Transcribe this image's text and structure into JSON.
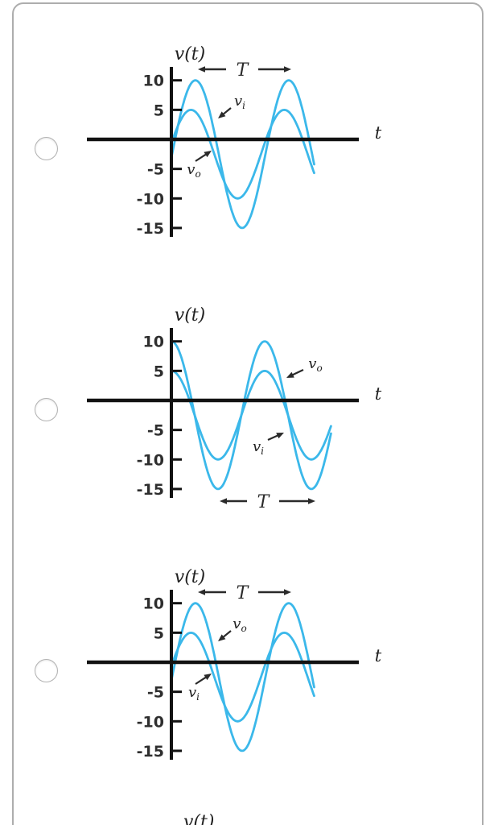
{
  "colors": {
    "curve": "#3bb8ea",
    "axis": "#121212",
    "arrow": "#2a2a2a",
    "text": "#222222",
    "tick_text": "#2e2e2e",
    "radio_border": "#b2b2b2",
    "card_border": "#adadad",
    "background": "#ffffff"
  },
  "question": {
    "options": [
      {
        "name": "option-1",
        "selected": false,
        "chart_index": 0
      },
      {
        "name": "option-2",
        "selected": false,
        "chart_index": 1
      },
      {
        "name": "option-3",
        "selected": false,
        "chart_index": 2
      }
    ]
  },
  "chart_data": [
    {
      "type": "line",
      "title": "",
      "ylabel": "v(t)",
      "xlabel": "t",
      "period_label": "T",
      "period_marker": "top",
      "yticks": [
        10,
        5,
        -5,
        -10,
        -15
      ],
      "ylim": [
        -16,
        12
      ],
      "grid": false,
      "periods_shown": 1.53,
      "series": [
        {
          "name": "v_i",
          "base": "v",
          "sub": "i",
          "shape": "sinusoid",
          "amplitude": 12.5,
          "offset": -2.5,
          "phase_rad": -0.05,
          "peak": 10,
          "trough": -15
        },
        {
          "name": "v_o",
          "base": "v",
          "sub": "o",
          "shape": "sinusoid",
          "amplitude": 7.5,
          "offset": -2.5,
          "phase_rad": 0.25,
          "peak": 5,
          "trough": -10
        }
      ],
      "annotations": [
        {
          "slot": "upper",
          "base": "v",
          "sub": "i",
          "points_to": "v_i"
        },
        {
          "slot": "lower",
          "base": "v",
          "sub": "o",
          "points_to": "v_o"
        }
      ]
    },
    {
      "type": "line",
      "title": "",
      "ylabel": "v(t)",
      "xlabel": "t",
      "period_label": "T",
      "period_marker": "bottom",
      "yticks": [
        10,
        5,
        -5,
        -10,
        -15
      ],
      "ylim": [
        -16,
        12
      ],
      "grid": false,
      "periods_shown": 1.71,
      "series": [
        {
          "name": "v_o",
          "base": "v",
          "sub": "o",
          "shape": "sinusoid",
          "amplitude": 12.5,
          "offset": -2.5,
          "phase_rad": 1.5708,
          "peak": 10,
          "trough": -15
        },
        {
          "name": "v_i",
          "base": "v",
          "sub": "i",
          "shape": "sinusoid",
          "amplitude": 7.5,
          "offset": -2.5,
          "phase_rad": 1.5708,
          "peak": 5,
          "trough": -10
        }
      ],
      "annotations": [
        {
          "slot": "upper",
          "base": "v",
          "sub": "o",
          "points_to": "v_o"
        },
        {
          "slot": "lower",
          "base": "v",
          "sub": "i",
          "points_to": "v_i"
        }
      ]
    },
    {
      "type": "line",
      "title": "",
      "ylabel": "v(t)",
      "xlabel": "t",
      "period_label": "T",
      "period_marker": "top",
      "yticks": [
        10,
        5,
        -5,
        -10,
        -15
      ],
      "ylim": [
        -16,
        12
      ],
      "grid": false,
      "periods_shown": 1.53,
      "series": [
        {
          "name": "v_o",
          "base": "v",
          "sub": "o",
          "shape": "sinusoid",
          "amplitude": 12.5,
          "offset": -2.5,
          "phase_rad": -0.05,
          "peak": 10,
          "trough": -15
        },
        {
          "name": "v_i",
          "base": "v",
          "sub": "i",
          "shape": "sinusoid",
          "amplitude": 7.5,
          "offset": -2.5,
          "phase_rad": 0.25,
          "peak": 5,
          "trough": -10
        }
      ],
      "annotations": [
        {
          "slot": "upper",
          "base": "v",
          "sub": "o",
          "points_to": "v_o"
        },
        {
          "slot": "lower",
          "base": "v",
          "sub": "i",
          "points_to": "v_i"
        }
      ]
    }
  ],
  "partial_next_option": {
    "ylabel": "v(t)"
  }
}
